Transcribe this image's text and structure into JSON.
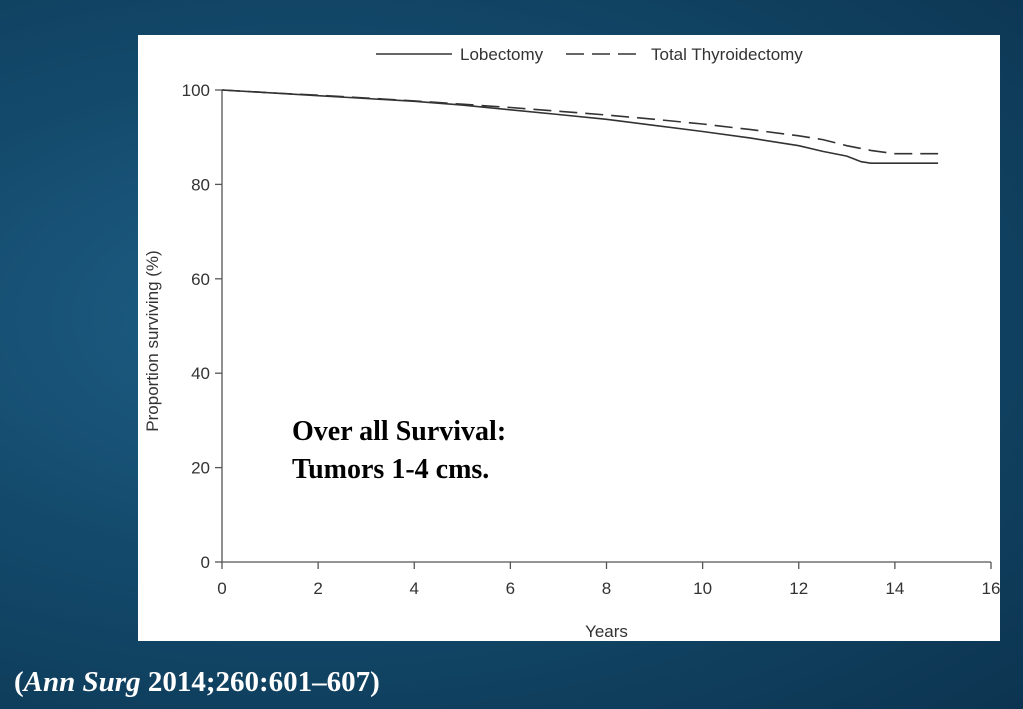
{
  "chart_data": {
    "type": "line",
    "xlabel": "Years",
    "ylabel": "Proportion surviving (%)",
    "xlim": [
      0,
      16
    ],
    "ylim": [
      0,
      100
    ],
    "xticks": [
      0,
      2,
      4,
      6,
      8,
      10,
      12,
      14,
      16
    ],
    "yticks": [
      0,
      20,
      40,
      60,
      80,
      100
    ],
    "grid": false,
    "legend_position": "top",
    "series": [
      {
        "name": "Lobectomy",
        "style": "solid",
        "x": [
          0,
          1,
          2,
          3,
          4,
          5,
          6,
          7,
          8,
          9,
          10,
          11,
          12,
          12.5,
          13,
          13.3,
          13.5,
          14,
          14.9
        ],
        "y": [
          100,
          99.4,
          98.8,
          98.2,
          97.6,
          96.8,
          95.8,
          94.8,
          93.8,
          92.5,
          91.2,
          89.8,
          88.2,
          87.0,
          86.0,
          84.8,
          84.5,
          84.5,
          84.5
        ]
      },
      {
        "name": "Total Thyroidectomy",
        "style": "dashed",
        "x": [
          0,
          1,
          2,
          3,
          4,
          5,
          6,
          7,
          8,
          9,
          10,
          11,
          12,
          12.5,
          13,
          13.5,
          14,
          14.9
        ],
        "y": [
          100,
          99.4,
          98.9,
          98.3,
          97.7,
          97.0,
          96.3,
          95.5,
          94.7,
          93.8,
          92.8,
          91.6,
          90.3,
          89.5,
          88.2,
          87.2,
          86.5,
          86.5
        ]
      }
    ],
    "annotation_lines": [
      "Over all Survival:",
      "Tumors 1-4 cms."
    ]
  },
  "citation": {
    "open": "(",
    "journal": "Ann Surg",
    "details": " 2014;260:601–607)"
  },
  "colors": {
    "line": "#333333",
    "axis": "#555555",
    "text": "#333333"
  }
}
